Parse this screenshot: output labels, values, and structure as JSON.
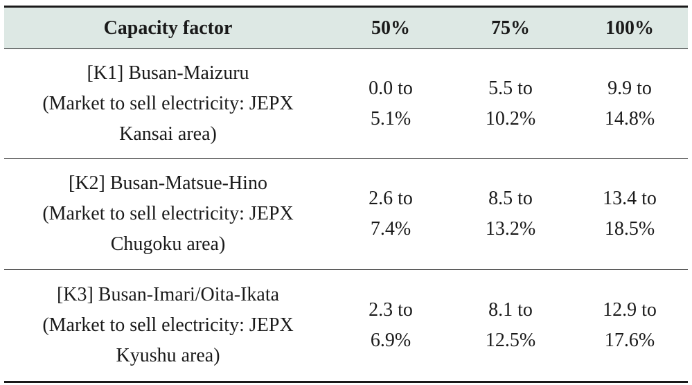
{
  "table": {
    "headers": [
      "Capacity factor",
      "50%",
      "75%",
      "100%"
    ],
    "rows": [
      {
        "route": [
          "[K1] Busan-Maizuru",
          "(Market to sell electricity: JEPX",
          "Kansai area)"
        ],
        "v50": [
          "0.0 to",
          "5.1%"
        ],
        "v75": [
          "5.5 to",
          "10.2%"
        ],
        "v100": [
          "9.9 to",
          "14.8%"
        ]
      },
      {
        "route": [
          "[K2] Busan-Matsue-Hino",
          "(Market to sell electricity: JEPX",
          "Chugoku area)"
        ],
        "v50": [
          "2.6 to",
          "7.4%"
        ],
        "v75": [
          "8.5 to",
          "13.2%"
        ],
        "v100": [
          "13.4 to",
          "18.5%"
        ]
      },
      {
        "route": [
          "[K3] Busan-Imari/Oita-Ikata",
          "(Market to sell electricity: JEPX",
          "Kyushu area)"
        ],
        "v50": [
          "2.3 to",
          "6.9%"
        ],
        "v75": [
          "8.1 to",
          "12.5%"
        ],
        "v100": [
          "12.9 to",
          "17.6%"
        ]
      }
    ]
  }
}
